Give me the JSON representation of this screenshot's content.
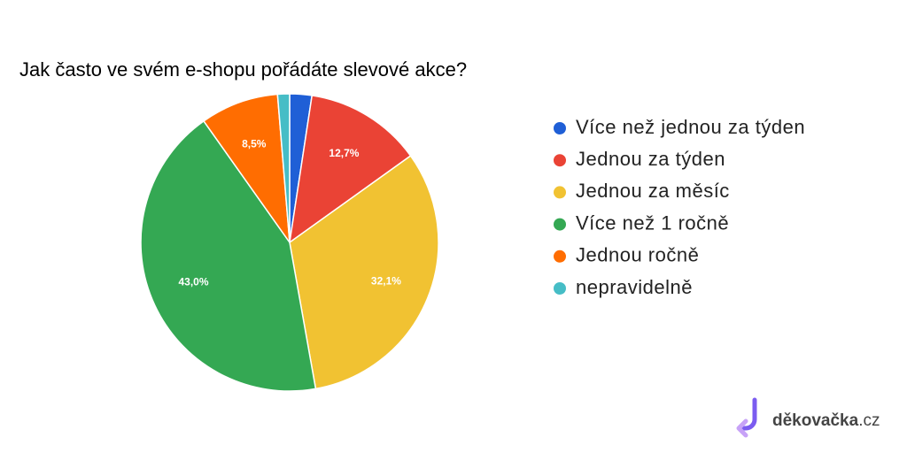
{
  "chart_data": {
    "type": "pie",
    "title": "Jak často ve svém e-shopu pořádáte slevové akce?",
    "categories": [
      "Více než jednou za týden",
      "Jednou za týden",
      "Jednou za měsíc",
      "Více než 1 ročně",
      "Jednou ročně",
      "nepravidelně"
    ],
    "values": [
      2.4,
      12.7,
      32.1,
      43.0,
      8.5,
      1.3
    ],
    "value_labels": [
      null,
      "12,7%",
      "32,1%",
      "43,0%",
      "8,5%",
      null
    ],
    "colors": [
      "#1f5fd6",
      "#ea4335",
      "#f1c232",
      "#34a853",
      "#ff6d01",
      "#46bdc6"
    ],
    "legend": "right"
  },
  "watermark": {
    "brand": "děkovačka",
    "domain": ".cz"
  }
}
